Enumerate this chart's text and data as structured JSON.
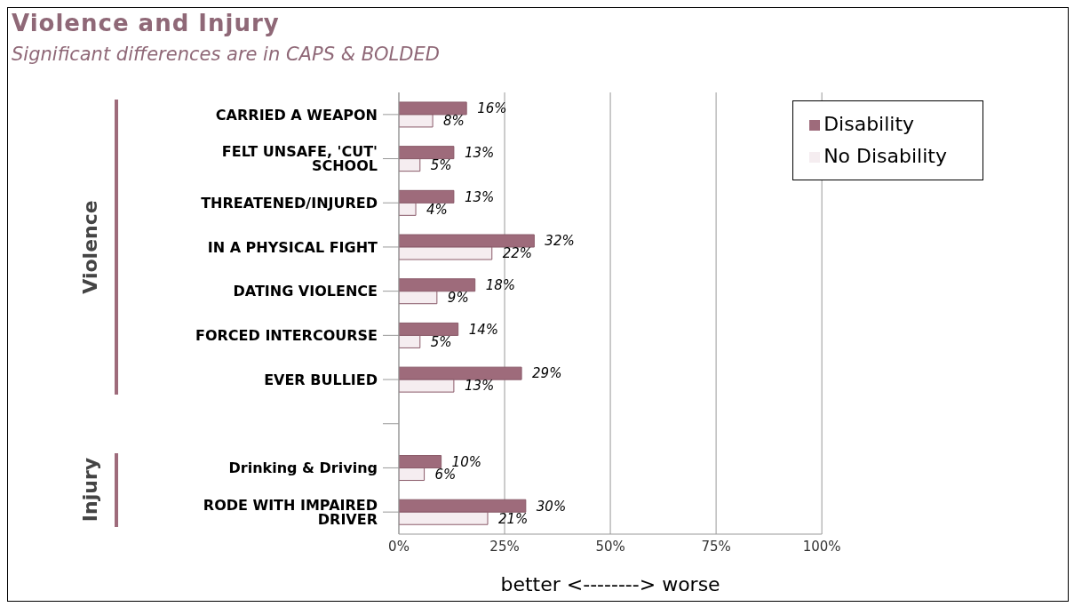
{
  "chart_data": {
    "type": "bar",
    "orientation": "horizontal",
    "title": "Violence and Injury",
    "subtitle": "Significant differences are in CAPS & BOLDED",
    "categories": [
      "CARRIED A WEAPON",
      "FELT UNSAFE, 'CUT' SCHOOL",
      "THREATENED/INJURED",
      "IN A PHYSICAL FIGHT",
      "DATING VIOLENCE",
      "FORCED INTERCOURSE",
      "EVER BULLIED",
      null,
      "Drinking & Driving",
      "RODE WITH IMPAIRED DRIVER"
    ],
    "series": [
      {
        "name": "Disability",
        "color": "#9e6b7b",
        "values": [
          16,
          13,
          13,
          32,
          18,
          14,
          29,
          null,
          10,
          30
        ],
        "value_labels": [
          "16%",
          "13%",
          "13%",
          "32%",
          "18%",
          "14%",
          "29%",
          null,
          "10%",
          "30%"
        ]
      },
      {
        "name": "No Disability",
        "color": "#f5edf0",
        "values": [
          8,
          5,
          4,
          22,
          9,
          5,
          13,
          null,
          6,
          21
        ],
        "value_labels": [
          "8%",
          "5%",
          "4%",
          "22%",
          "9%",
          "5%",
          "13%",
          null,
          "6%",
          "21%"
        ]
      }
    ],
    "xlim": [
      0,
      100
    ],
    "xticks": [
      {
        "value": 0,
        "label": "0%"
      },
      {
        "value": 25,
        "label": "25%"
      },
      {
        "value": 50,
        "label": "50%"
      },
      {
        "value": 75,
        "label": "75%"
      },
      {
        "value": 100,
        "label": "100%"
      }
    ],
    "xlabel": "better <--------> worse",
    "annotations": [
      "Violence",
      "Injury"
    ],
    "grid": "x",
    "legend": "top right"
  }
}
